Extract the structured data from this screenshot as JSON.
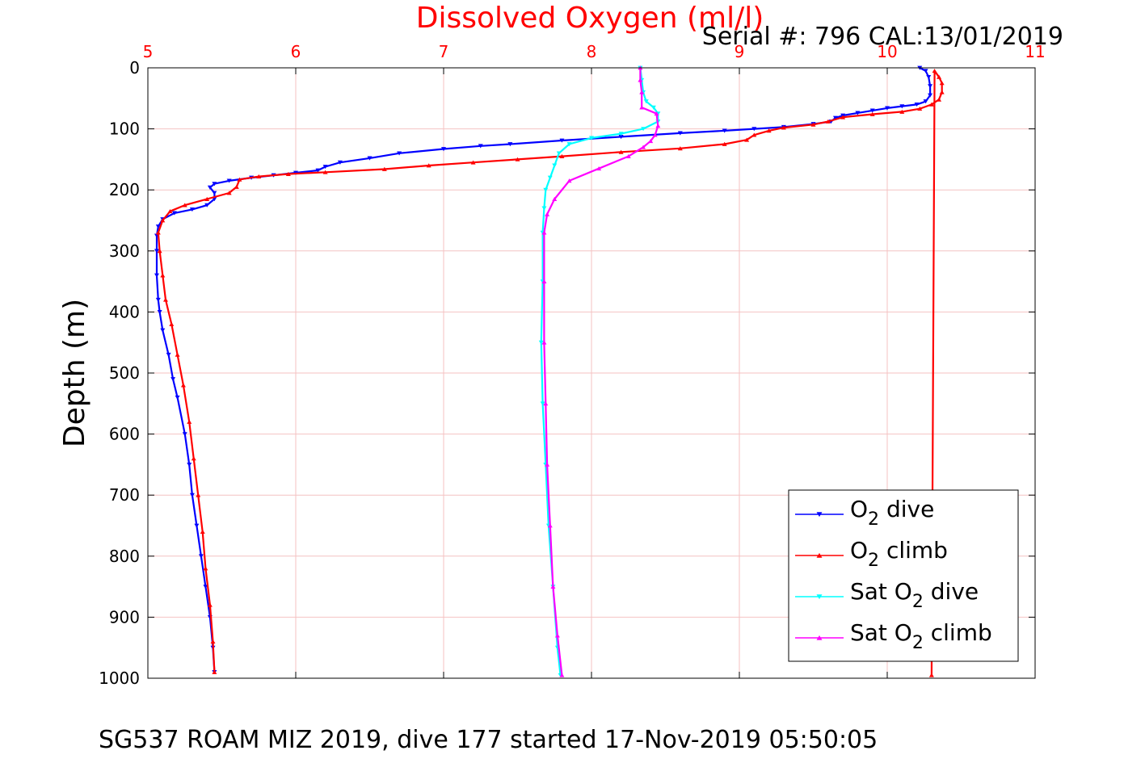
{
  "chart_data": {
    "type": "line",
    "title": "Dissolved Oxygen (ml/l)",
    "subtitle": "Serial #: 796  CAL:13/01/2019",
    "footer": "SG537 ROAM MIZ 2019, dive 177 started 17-Nov-2019 05:50:05",
    "xlabel": "",
    "ylabel": "Depth (m)",
    "xlim": [
      5,
      11
    ],
    "ylim": [
      0,
      1000
    ],
    "y_reversed": true,
    "x_axis_position": "top",
    "xticks": [
      5,
      6,
      7,
      8,
      9,
      10,
      11
    ],
    "yticks": [
      0,
      100,
      200,
      300,
      400,
      500,
      600,
      700,
      800,
      900,
      1000
    ],
    "grid": true,
    "legend_position": "bottom-right",
    "colors": {
      "x_axis_text": "#ff0000",
      "title": "#ff0000",
      "grid": "#f4c2c2"
    },
    "series": [
      {
        "name": "O2 dive",
        "legend": {
          "main": "O",
          "sub": "2",
          "rest": " dive"
        },
        "color": "#0000ff",
        "marker": "triangle-down",
        "points": [
          [
            10.22,
            0
          ],
          [
            10.26,
            5
          ],
          [
            10.28,
            15
          ],
          [
            10.29,
            30
          ],
          [
            10.29,
            45
          ],
          [
            10.26,
            55
          ],
          [
            10.2,
            60
          ],
          [
            10.1,
            63
          ],
          [
            10.0,
            66
          ],
          [
            9.9,
            70
          ],
          [
            9.8,
            74
          ],
          [
            9.7,
            78
          ],
          [
            9.65,
            82
          ],
          [
            9.62,
            88
          ],
          [
            9.5,
            92
          ],
          [
            9.3,
            97
          ],
          [
            9.1,
            100
          ],
          [
            8.9,
            103
          ],
          [
            8.6,
            107
          ],
          [
            8.2,
            113
          ],
          [
            7.8,
            119
          ],
          [
            7.45,
            125
          ],
          [
            7.25,
            128
          ],
          [
            7.0,
            133
          ],
          [
            6.7,
            140
          ],
          [
            6.5,
            148
          ],
          [
            6.3,
            155
          ],
          [
            6.2,
            162
          ],
          [
            6.15,
            168
          ],
          [
            6.0,
            172
          ],
          [
            5.85,
            176
          ],
          [
            5.7,
            180
          ],
          [
            5.55,
            185
          ],
          [
            5.45,
            190
          ],
          [
            5.42,
            196
          ],
          [
            5.45,
            205
          ],
          [
            5.45,
            215
          ],
          [
            5.4,
            225
          ],
          [
            5.3,
            232
          ],
          [
            5.18,
            238
          ],
          [
            5.1,
            248
          ],
          [
            5.07,
            260
          ],
          [
            5.06,
            275
          ],
          [
            5.06,
            300
          ],
          [
            5.06,
            340
          ],
          [
            5.07,
            380
          ],
          [
            5.08,
            400
          ],
          [
            5.1,
            430
          ],
          [
            5.14,
            470
          ],
          [
            5.17,
            510
          ],
          [
            5.2,
            540
          ],
          [
            5.25,
            600
          ],
          [
            5.28,
            650
          ],
          [
            5.3,
            700
          ],
          [
            5.33,
            750
          ],
          [
            5.36,
            800
          ],
          [
            5.39,
            850
          ],
          [
            5.42,
            900
          ],
          [
            5.44,
            950
          ],
          [
            5.45,
            990
          ]
        ]
      },
      {
        "name": "O2 climb",
        "legend": {
          "main": "O",
          "sub": "2",
          "rest": " climb"
        },
        "color": "#ff0000",
        "marker": "triangle-up",
        "points": [
          [
            10.3,
            995
          ],
          [
            10.32,
            5
          ],
          [
            10.35,
            15
          ],
          [
            10.37,
            25
          ],
          [
            10.37,
            40
          ],
          [
            10.35,
            52
          ],
          [
            10.3,
            60
          ],
          [
            10.22,
            67
          ],
          [
            10.1,
            72
          ],
          [
            9.9,
            76
          ],
          [
            9.7,
            81
          ],
          [
            9.6,
            88
          ],
          [
            9.5,
            93
          ],
          [
            9.3,
            98
          ],
          [
            9.2,
            103
          ],
          [
            9.1,
            110
          ],
          [
            9.05,
            118
          ],
          [
            8.9,
            125
          ],
          [
            8.6,
            132
          ],
          [
            8.2,
            138
          ],
          [
            7.8,
            145
          ],
          [
            7.5,
            150
          ],
          [
            7.2,
            155
          ],
          [
            6.9,
            160
          ],
          [
            6.6,
            166
          ],
          [
            6.2,
            171
          ],
          [
            5.95,
            174
          ],
          [
            5.75,
            178
          ],
          [
            5.62,
            183
          ],
          [
            5.6,
            195
          ],
          [
            5.55,
            205
          ],
          [
            5.4,
            215
          ],
          [
            5.25,
            225
          ],
          [
            5.15,
            235
          ],
          [
            5.1,
            250
          ],
          [
            5.07,
            270
          ],
          [
            5.08,
            300
          ],
          [
            5.1,
            340
          ],
          [
            5.12,
            380
          ],
          [
            5.16,
            420
          ],
          [
            5.2,
            470
          ],
          [
            5.24,
            520
          ],
          [
            5.28,
            580
          ],
          [
            5.31,
            640
          ],
          [
            5.34,
            700
          ],
          [
            5.37,
            760
          ],
          [
            5.39,
            820
          ],
          [
            5.42,
            880
          ],
          [
            5.44,
            940
          ],
          [
            5.45,
            990
          ]
        ]
      },
      {
        "name": "Sat O2 dive",
        "legend": {
          "main": "Sat O",
          "sub": "2",
          "rest": " dive"
        },
        "color": "#00ffff",
        "marker": "triangle-down",
        "points": [
          [
            8.33,
            0
          ],
          [
            8.34,
            20
          ],
          [
            8.35,
            40
          ],
          [
            8.37,
            55
          ],
          [
            8.42,
            65
          ],
          [
            8.45,
            75
          ],
          [
            8.45,
            88
          ],
          [
            8.35,
            100
          ],
          [
            8.2,
            108
          ],
          [
            8.0,
            115
          ],
          [
            7.85,
            125
          ],
          [
            7.78,
            140
          ],
          [
            7.75,
            160
          ],
          [
            7.72,
            180
          ],
          [
            7.69,
            200
          ],
          [
            7.68,
            230
          ],
          [
            7.67,
            270
          ],
          [
            7.67,
            350
          ],
          [
            7.66,
            450
          ],
          [
            7.67,
            550
          ],
          [
            7.69,
            650
          ],
          [
            7.71,
            750
          ],
          [
            7.74,
            850
          ],
          [
            7.77,
            950
          ],
          [
            7.79,
            995
          ]
        ]
      },
      {
        "name": "Sat O2 climb",
        "legend": {
          "main": "Sat O",
          "sub": "2",
          "rest": " climb"
        },
        "color": "#ff00ff",
        "marker": "triangle-up",
        "points": [
          [
            7.8,
            995
          ],
          [
            7.77,
            930
          ],
          [
            7.74,
            850
          ],
          [
            7.72,
            750
          ],
          [
            7.7,
            650
          ],
          [
            7.69,
            550
          ],
          [
            7.68,
            450
          ],
          [
            7.68,
            350
          ],
          [
            7.68,
            270
          ],
          [
            7.7,
            240
          ],
          [
            7.75,
            215
          ],
          [
            7.85,
            185
          ],
          [
            8.05,
            165
          ],
          [
            8.25,
            145
          ],
          [
            8.35,
            130
          ],
          [
            8.4,
            120
          ],
          [
            8.43,
            110
          ],
          [
            8.45,
            95
          ],
          [
            8.44,
            75
          ],
          [
            8.34,
            65
          ],
          [
            8.34,
            40
          ],
          [
            8.33,
            20
          ],
          [
            8.33,
            0
          ]
        ]
      }
    ]
  }
}
